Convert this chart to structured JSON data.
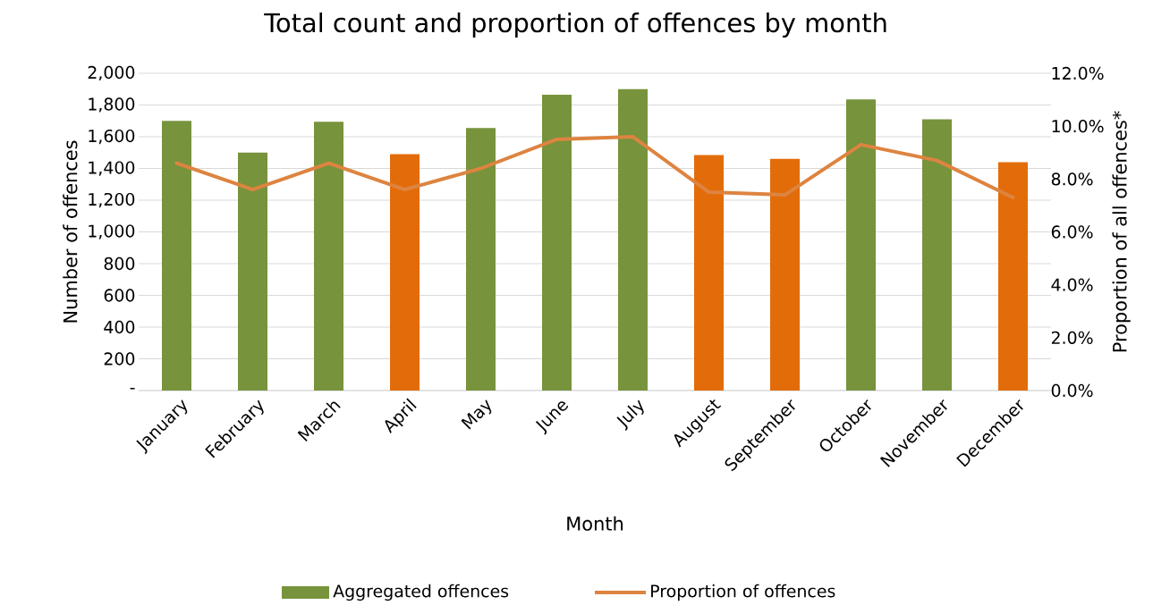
{
  "chart_data": {
    "type": "bar",
    "title": "Total count and proportion of offences by month",
    "xlabel": "Month",
    "ylabel": "Number of offences",
    "y2label": "Proportion of all offences*",
    "categories": [
      "January",
      "February",
      "March",
      "April",
      "May",
      "June",
      "July",
      "August",
      "September",
      "October",
      "November",
      "December"
    ],
    "series": [
      {
        "name": "Aggregated offences",
        "color": "#77933c",
        "colors": [
          "#77933c",
          "#77933c",
          "#77933c",
          "#e36c0a",
          "#77933c",
          "#77933c",
          "#77933c",
          "#e36c0a",
          "#e36c0a",
          "#77933c",
          "#77933c",
          "#e36c0a"
        ],
        "values": [
          1700,
          1500,
          1695,
          1490,
          1655,
          1865,
          1900,
          1485,
          1460,
          1835,
          1710,
          1440
        ]
      },
      {
        "name": "Proportion of offences",
        "type": "line",
        "axis": "y2",
        "color": "#dd8440",
        "values": [
          8.6,
          7.6,
          8.6,
          7.6,
          8.4,
          9.5,
          9.6,
          7.5,
          7.4,
          9.3,
          8.7,
          7.3
        ]
      }
    ],
    "ylim": [
      0,
      2000
    ],
    "yticks": [
      {
        "value": 0,
        "label": "-"
      },
      {
        "value": 200,
        "label": "200"
      },
      {
        "value": 400,
        "label": "400"
      },
      {
        "value": 600,
        "label": "600"
      },
      {
        "value": 800,
        "label": "800"
      },
      {
        "value": 1000,
        "label": "1,000"
      },
      {
        "value": 1200,
        "label": "1,200"
      },
      {
        "value": 1400,
        "label": "1,400"
      },
      {
        "value": 1600,
        "label": "1,600"
      },
      {
        "value": 1800,
        "label": "1,800"
      },
      {
        "value": 2000,
        "label": "2,000"
      }
    ],
    "y2lim": [
      0,
      12
    ],
    "y2ticks": [
      {
        "value": 0,
        "label": "0.0%"
      },
      {
        "value": 2,
        "label": "2.0%"
      },
      {
        "value": 4,
        "label": "4.0%"
      },
      {
        "value": 6,
        "label": "6.0%"
      },
      {
        "value": 8,
        "label": "8.0%"
      },
      {
        "value": 10,
        "label": "10.0%"
      },
      {
        "value": 12,
        "label": "12.0%"
      }
    ],
    "grid": "y",
    "legend": "bottom"
  }
}
